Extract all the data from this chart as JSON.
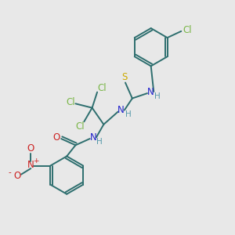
{
  "background_color": "#e8e8e8",
  "fig_size": [
    3.0,
    3.0
  ],
  "dpi": 100,
  "atom_colors": {
    "C": "#2d6e6e",
    "Cl": "#7ab648",
    "N": "#2222cc",
    "O": "#cc2222",
    "S": "#ccaa00",
    "H": "#5599aa"
  },
  "bond_color": "#2d6e6e",
  "bond_width": 1.4,
  "font_size_atom": 8.5,
  "font_size_h": 7.5,
  "font_size_sign": 6.5
}
